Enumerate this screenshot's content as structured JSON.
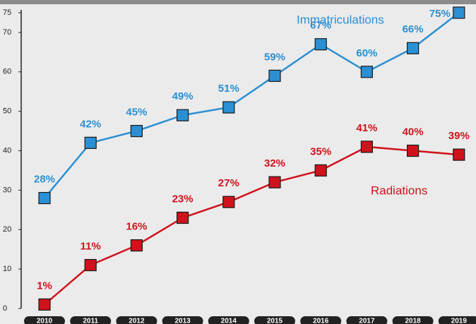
{
  "chart_data": {
    "type": "line",
    "categories": [
      "2010",
      "2011",
      "2012",
      "2013",
      "2014",
      "2015",
      "2016",
      "2017",
      "2018",
      "2019"
    ],
    "series": [
      {
        "name": "Immatriculations",
        "color": "#2a8fd3",
        "values": [
          28,
          42,
          45,
          49,
          51,
          59,
          67,
          60,
          66,
          75
        ],
        "value_labels": [
          "28%",
          "42%",
          "45%",
          "49%",
          "51%",
          "59%",
          "67%",
          "60%",
          "66%",
          "75%"
        ]
      },
      {
        "name": "Radiations",
        "color": "#d0121c",
        "values": [
          1,
          11,
          16,
          23,
          27,
          32,
          35,
          41,
          40,
          39
        ],
        "value_labels": [
          "1%",
          "11%",
          "16%",
          "23%",
          "27%",
          "32%",
          "35%",
          "41%",
          "40%",
          "39%"
        ]
      }
    ],
    "ylim": [
      0,
      75
    ],
    "yticks": [
      0,
      10,
      20,
      30,
      40,
      50,
      60,
      70,
      75
    ]
  }
}
